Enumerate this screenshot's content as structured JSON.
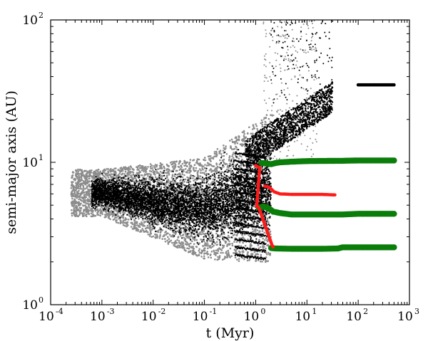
{
  "chart_data": {
    "type": "scatter",
    "title": "",
    "xlabel": "t (Myr)",
    "ylabel": "semi-major axis (AU)",
    "xscale": "log",
    "yscale": "log",
    "xlim": [
      0.0001,
      1000
    ],
    "ylim": [
      1,
      100
    ],
    "grid": false,
    "legend": "none",
    "x_ticks": [
      {
        "base": "10",
        "exp": "-4",
        "value": 0.0001
      },
      {
        "base": "10",
        "exp": "-3",
        "value": 0.001
      },
      {
        "base": "10",
        "exp": "-2",
        "value": 0.01
      },
      {
        "base": "10",
        "exp": "-1",
        "value": 0.1
      },
      {
        "base": "10",
        "exp": "0",
        "value": 1
      },
      {
        "base": "10",
        "exp": "1",
        "value": 10
      },
      {
        "base": "10",
        "exp": "2",
        "value": 100
      },
      {
        "base": "10",
        "exp": "3",
        "value": 1000
      }
    ],
    "y_ticks": [
      {
        "base": "10",
        "exp": "0",
        "value": 1
      },
      {
        "base": "10",
        "exp": "1",
        "value": 10
      },
      {
        "base": "10",
        "exp": "2",
        "value": 100
      }
    ],
    "colors": {
      "gray_cloud": "#8c8c8c",
      "black_cloud": "#000000",
      "red": "#ff1a1a",
      "green": "#0a7d0a"
    },
    "series": [
      {
        "color": "#0a7d0a",
        "marker": "large-dot",
        "points": [
          [
            1.3,
            9.9
          ],
          [
            1.6,
            9.8
          ],
          [
            2,
            9.7
          ],
          [
            2.5,
            9.9
          ],
          [
            3,
            10.0
          ],
          [
            5,
            10.1
          ],
          [
            10,
            10.2
          ],
          [
            50,
            10.25
          ],
          [
            100,
            10.3
          ],
          [
            300,
            10.3
          ],
          [
            500,
            10.3
          ]
        ]
      },
      {
        "color": "#0a7d0a",
        "marker": "large-dot",
        "points": [
          [
            1.15,
            4.8
          ],
          [
            1.4,
            4.9
          ],
          [
            1.8,
            4.75
          ],
          [
            2.2,
            4.5
          ],
          [
            3,
            4.4
          ],
          [
            5,
            4.3
          ],
          [
            10,
            4.3
          ],
          [
            50,
            4.3
          ],
          [
            100,
            4.35
          ],
          [
            300,
            4.35
          ],
          [
            500,
            4.35
          ]
        ]
      },
      {
        "color": "#0a7d0a",
        "marker": "large-dot",
        "points": [
          [
            2,
            2.5
          ],
          [
            2.5,
            2.48
          ],
          [
            5,
            2.47
          ],
          [
            10,
            2.47
          ],
          [
            20,
            2.47
          ],
          [
            40,
            2.48
          ],
          [
            50,
            2.53
          ],
          [
            100,
            2.53
          ],
          [
            300,
            2.53
          ],
          [
            500,
            2.53
          ]
        ]
      },
      {
        "color": "#ff1a1a",
        "marker": "small-dot",
        "points": [
          [
            1.5,
            6.8
          ],
          [
            1.8,
            6.7
          ],
          [
            2,
            6.5
          ],
          [
            2.3,
            6.2
          ],
          [
            3,
            6.0
          ],
          [
            5,
            5.95
          ],
          [
            10,
            5.95
          ],
          [
            20,
            5.95
          ],
          [
            35,
            5.9
          ]
        ]
      },
      {
        "color": "#ff1a1a",
        "marker": "small-dot",
        "points": [
          [
            1.0,
            9.5
          ],
          [
            1.1,
            9.3
          ],
          [
            1.2,
            9.2
          ],
          [
            1.05,
            4.9
          ],
          [
            1.15,
            4.8
          ],
          [
            2.1,
            2.6
          ],
          [
            2.2,
            2.55
          ]
        ]
      },
      {
        "color": "#000000",
        "marker": "small-dot",
        "points": [
          [
            100,
            35
          ],
          [
            200,
            35
          ],
          [
            300,
            35
          ],
          [
            400,
            35
          ],
          [
            500,
            35
          ]
        ]
      }
    ]
  }
}
